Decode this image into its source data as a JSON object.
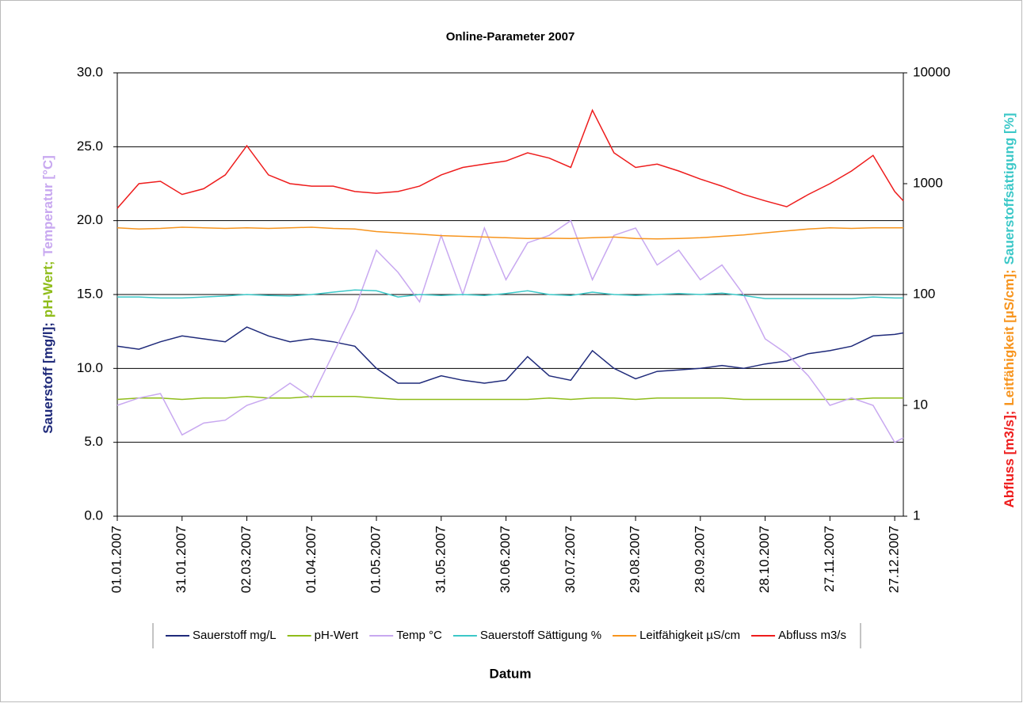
{
  "chart_data": {
    "type": "line",
    "title": "Online-Parameter 2007",
    "x_label": "Datum",
    "y_label": [
      {
        "text": "Sauerstoff [mg/l];",
        "color": "#1f2a7a"
      },
      {
        "text": "pH-Wert;",
        "color": "#8fbc1a"
      },
      {
        "text": "Temperatur [°C]",
        "color": "#c8a8f0"
      }
    ],
    "y2_label": [
      {
        "text": "Abfluss [m3/s];",
        "color": "#ee1c1c"
      },
      {
        "text": "Leitfähigkeit [µS/cm];",
        "color": "#f7941d"
      },
      {
        "text": "Sauerstoffsättigung [%]",
        "color": "#3cc8c8"
      }
    ],
    "x": [
      "01.01.2007",
      "11.01.2007",
      "21.01.2007",
      "31.01.2007",
      "10.02.2007",
      "20.02.2007",
      "02.03.2007",
      "12.03.2007",
      "22.03.2007",
      "01.04.2007",
      "11.04.2007",
      "21.04.2007",
      "01.05.2007",
      "11.05.2007",
      "21.05.2007",
      "31.05.2007",
      "10.06.2007",
      "20.06.2007",
      "30.06.2007",
      "10.07.2007",
      "20.07.2007",
      "30.07.2007",
      "09.08.2007",
      "19.08.2007",
      "29.08.2007",
      "08.09.2007",
      "18.09.2007",
      "28.09.2007",
      "08.10.2007",
      "18.10.2007",
      "28.10.2007",
      "07.11.2007",
      "17.11.2007",
      "27.11.2007",
      "07.12.2007",
      "17.12.2007",
      "27.12.2007",
      "31.12.2007"
    ],
    "xlim": [
      "01.01.2007",
      "31.12.2007"
    ],
    "xticks": [
      "01.01.2007",
      "31.01.2007",
      "02.03.2007",
      "01.04.2007",
      "01.05.2007",
      "31.05.2007",
      "30.06.2007",
      "30.07.2007",
      "29.08.2007",
      "28.09.2007",
      "28.10.2007",
      "27.11.2007",
      "27.12.2007"
    ],
    "ylim": [
      0,
      30
    ],
    "yticks": [
      {
        "value": 0,
        "label": "0.0"
      },
      {
        "value": 5,
        "label": "5.0"
      },
      {
        "value": 10,
        "label": "10.0"
      },
      {
        "value": 15,
        "label": "15.0"
      },
      {
        "value": 20,
        "label": "20.0"
      },
      {
        "value": 25,
        "label": "25.0"
      },
      {
        "value": 30,
        "label": "30.0"
      }
    ],
    "y2lim": [
      1,
      10000
    ],
    "y2ticks": [
      1,
      10,
      100,
      1000,
      10000
    ],
    "y2_log": true,
    "grid": true,
    "legend": "bottom",
    "series": [
      {
        "name": "Sauerstoff mg/L",
        "color": "#1f2a7a",
        "values": [
          11.5,
          11.3,
          11.8,
          12.2,
          12.0,
          11.8,
          12.8,
          12.2,
          11.8,
          12.0,
          11.8,
          11.5,
          10.0,
          9.0,
          9.0,
          9.5,
          9.2,
          9.0,
          9.2,
          10.8,
          9.5,
          9.2,
          11.2,
          10.0,
          9.3,
          9.8,
          9.9,
          10.0,
          10.2,
          10.0,
          10.3,
          10.5,
          11.0,
          11.2,
          11.5,
          12.2,
          12.3,
          12.4
        ]
      },
      {
        "name": "pH-Wert",
        "color": "#8fbc1a",
        "values": [
          7.9,
          8.0,
          8.0,
          7.9,
          8.0,
          8.0,
          8.1,
          8.0,
          8.0,
          8.1,
          8.1,
          8.1,
          8.0,
          7.9,
          7.9,
          7.9,
          7.9,
          7.9,
          7.9,
          7.9,
          8.0,
          7.9,
          8.0,
          8.0,
          7.9,
          8.0,
          8.0,
          8.0,
          8.0,
          7.9,
          7.9,
          7.9,
          7.9,
          7.9,
          7.9,
          8.0,
          8.0,
          8.0
        ]
      },
      {
        "name": "Temp °C",
        "color": "#c8a8f0",
        "values": [
          7.5,
          8.0,
          8.3,
          5.5,
          6.3,
          6.5,
          7.5,
          8.0,
          9.0,
          8.0,
          11.0,
          14.0,
          18.0,
          16.5,
          14.5,
          19.0,
          15.0,
          19.5,
          16.0,
          18.5,
          19.0,
          20.0,
          16.0,
          19.0,
          19.5,
          17.0,
          18.0,
          16.0,
          17.0,
          15.0,
          12.0,
          11.0,
          9.5,
          7.5,
          8.0,
          7.5,
          5.0,
          5.3
        ]
      },
      {
        "name": "Sauerstoff Sättigung %",
        "color": "#3cc8c8",
        "axis": "y2",
        "values": [
          95,
          95,
          93,
          93,
          95,
          97,
          100,
          98,
          97,
          100,
          105,
          110,
          108,
          95,
          100,
          98,
          100,
          98,
          102,
          108,
          100,
          98,
          105,
          100,
          98,
          100,
          102,
          100,
          103,
          98,
          92,
          92,
          92,
          92,
          92,
          95,
          93,
          93
        ]
      },
      {
        "name": "Leitfähigkeit µS/cm",
        "color": "#f7941d",
        "axis": "y2",
        "values": [
          400,
          390,
          395,
          405,
          400,
          395,
          400,
          395,
          400,
          405,
          395,
          390,
          370,
          360,
          350,
          340,
          335,
          330,
          325,
          320,
          322,
          320,
          325,
          330,
          320,
          318,
          320,
          325,
          335,
          345,
          360,
          375,
          390,
          400,
          395,
          400,
          400,
          400
        ]
      },
      {
        "name": "Abfluss m3/s",
        "color": "#ee1c1c",
        "axis": "y2",
        "values": [
          600,
          1000,
          1050,
          800,
          900,
          1200,
          2200,
          1200,
          1000,
          950,
          950,
          850,
          820,
          850,
          950,
          1200,
          1400,
          1500,
          1600,
          1900,
          1700,
          1400,
          4600,
          1900,
          1400,
          1500,
          1300,
          1100,
          950,
          800,
          700,
          620,
          800,
          1000,
          1300,
          1800,
          850,
          700
        ]
      }
    ]
  }
}
